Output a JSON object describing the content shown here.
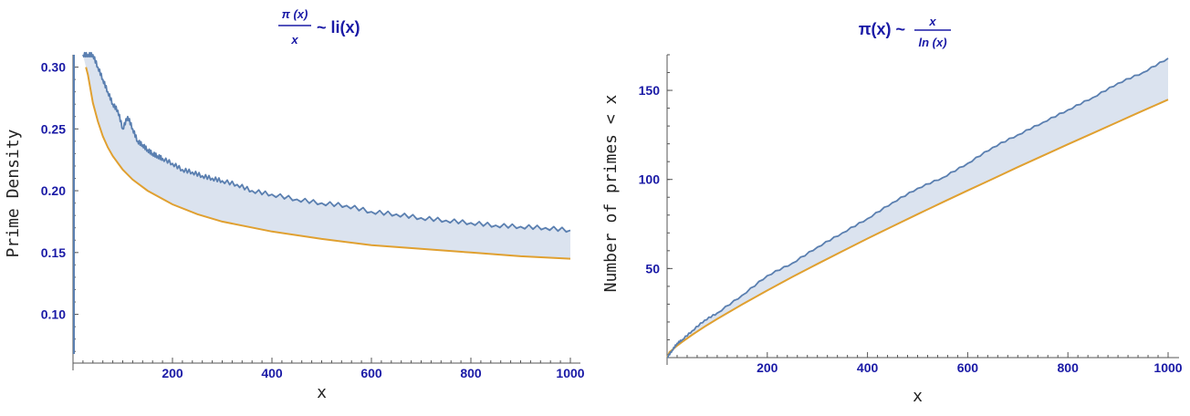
{
  "colors": {
    "primes": "#5a7fb0",
    "approx": "#e0a030",
    "fill": "#dbe3ef",
    "title": "#1a1aa6"
  },
  "chart_data": [
    {
      "type": "line",
      "title": {
        "frac_num": "π (x)",
        "frac_den": "x",
        "rest": "~ li(x)"
      },
      "xlabel": "x",
      "ylabel": "Prime Density",
      "xlim": [
        0,
        1000
      ],
      "ylim": [
        0.065,
        0.31
      ],
      "xticks": [
        200,
        400,
        600,
        800,
        1000
      ],
      "yticks": [
        0.1,
        0.15,
        0.2,
        0.25,
        0.3
      ],
      "ytick_labels": [
        "0.10",
        "0.15",
        "0.20",
        "0.25",
        "0.30"
      ],
      "series": [
        {
          "role": "primes",
          "x": [
            20,
            30,
            40,
            50,
            60,
            70,
            80,
            90,
            100,
            110,
            120,
            130,
            140,
            150,
            160,
            170,
            180,
            200,
            220,
            240,
            260,
            280,
            300,
            330,
            360,
            400,
            450,
            500,
            550,
            600,
            650,
            700,
            750,
            800,
            850,
            900,
            950,
            1000
          ],
          "y": [
            0.31,
            0.31,
            0.31,
            0.3,
            0.29,
            0.28,
            0.27,
            0.265,
            0.25,
            0.26,
            0.25,
            0.24,
            0.237,
            0.233,
            0.23,
            0.228,
            0.226,
            0.222,
            0.217,
            0.215,
            0.212,
            0.21,
            0.208,
            0.205,
            0.2,
            0.197,
            0.193,
            0.19,
            0.188,
            0.183,
            0.181,
            0.178,
            0.176,
            0.174,
            0.172,
            0.171,
            0.17,
            0.168
          ]
        },
        {
          "role": "approx",
          "x": [
            26,
            30,
            40,
            50,
            60,
            70,
            80,
            100,
            120,
            150,
            200,
            250,
            300,
            400,
            500,
            600,
            700,
            800,
            900,
            1000
          ],
          "y": [
            0.3,
            0.294,
            0.271,
            0.256,
            0.244,
            0.235,
            0.228,
            0.217,
            0.209,
            0.2,
            0.189,
            0.181,
            0.175,
            0.167,
            0.161,
            0.156,
            0.153,
            0.15,
            0.147,
            0.145
          ]
        }
      ]
    },
    {
      "type": "line",
      "title": {
        "rest": "π(x) ~",
        "frac_num": "x",
        "frac_den": "ln (x)"
      },
      "xlabel": "x",
      "ylabel": "Number of primes < x",
      "xlim": [
        0,
        1000
      ],
      "ylim": [
        0,
        170
      ],
      "xticks": [
        200,
        400,
        600,
        800,
        1000
      ],
      "yticks": [
        50,
        100,
        150
      ],
      "ytick_labels": [
        "50",
        "100",
        "150"
      ],
      "series": [
        {
          "role": "primes",
          "x": [
            0,
            10,
            20,
            30,
            50,
            75,
            100,
            150,
            200,
            250,
            300,
            350,
            400,
            450,
            500,
            550,
            600,
            650,
            700,
            750,
            800,
            850,
            900,
            950,
            1000
          ],
          "y": [
            0,
            4,
            8,
            10,
            15,
            21,
            25,
            35,
            46,
            53,
            62,
            70,
            78,
            87,
            95,
            101,
            109,
            118,
            125,
            132,
            139,
            146,
            154,
            160,
            168
          ]
        },
        {
          "role": "approx",
          "x": [
            0,
            5,
            10,
            20,
            30,
            50,
            75,
            100,
            150,
            200,
            250,
            300,
            350,
            400,
            450,
            500,
            550,
            600,
            650,
            700,
            750,
            800,
            850,
            900,
            950,
            1000
          ],
          "y": [
            0,
            3.1,
            4.3,
            6.7,
            8.8,
            12.8,
            17.4,
            21.7,
            29.9,
            37.7,
            45.3,
            52.6,
            59.7,
            66.8,
            73.7,
            80.5,
            87.2,
            93.8,
            100.3,
            106.9,
            113.3,
            119.7,
            126.0,
            132.3,
            138.6,
            144.8
          ]
        }
      ]
    }
  ]
}
